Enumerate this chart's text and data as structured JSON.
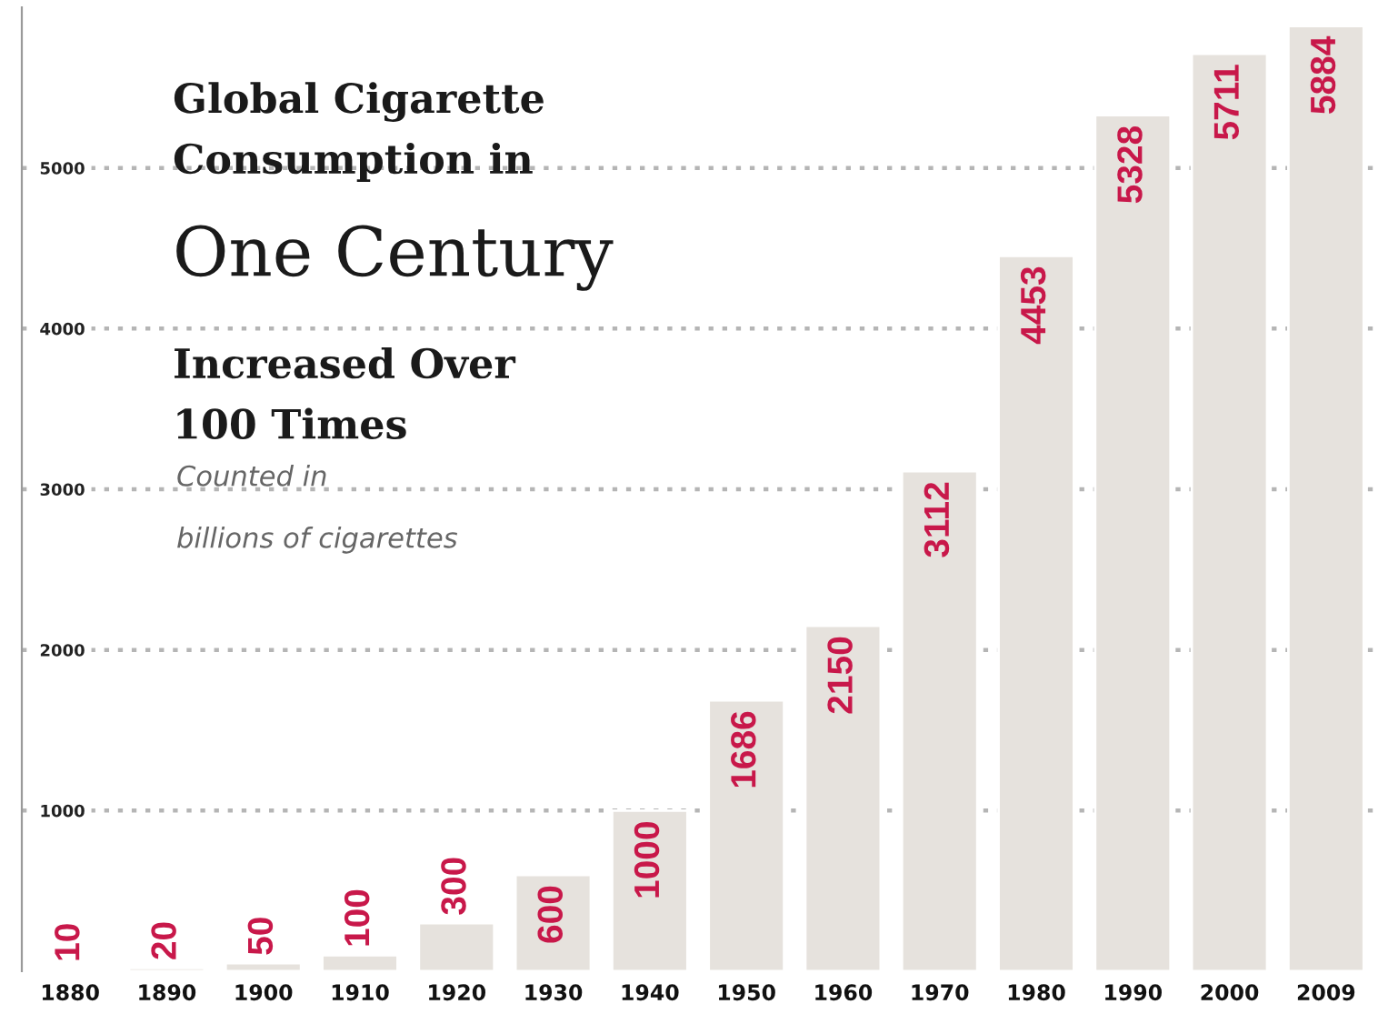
{
  "chart_data": {
    "type": "bar",
    "title": "Global Cigarette\nConsumption in\nOne Century\nIncreased Over\n100 Times",
    "subtitle": "Counted in\nbillions of cigarettes",
    "categories": [
      "1880",
      "1890",
      "1900",
      "1910",
      "1920",
      "1930",
      "1940",
      "1950",
      "1960",
      "1970",
      "1980",
      "1990",
      "2000",
      "2009"
    ],
    "values": [
      10,
      20,
      50,
      100,
      300,
      600,
      1000,
      1686,
      2150,
      3112,
      4453,
      5328,
      5711,
      5884
    ],
    "color": "#e6e2dd",
    "ylim": [
      0,
      6000
    ],
    "yticks": [
      1000,
      2000,
      3000,
      4000,
      5000
    ],
    "grid": "y",
    "data_labels": true
  }
}
